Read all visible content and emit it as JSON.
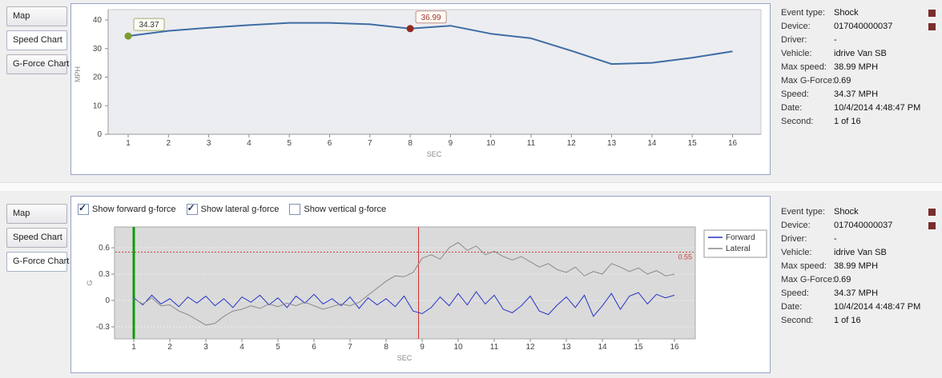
{
  "tabs": [
    "Map",
    "Speed Chart",
    "G-Force Chart"
  ],
  "panels": [
    {
      "selected_tab": "Speed Chart"
    },
    {
      "selected_tab": "G-Force Chart"
    }
  ],
  "event_info": {
    "rows": [
      {
        "label": "Event type:",
        "value": "Shock"
      },
      {
        "label": "Device:",
        "value": "017040000037"
      },
      {
        "label": "Driver:",
        "value": "-"
      },
      {
        "label": "Vehicle:",
        "value": "idrive Van SB"
      },
      {
        "label": "Max speed:",
        "value": "38.99 MPH"
      },
      {
        "label": "Max G-Force:",
        "value": "0.69"
      },
      {
        "label": "Speed:",
        "value": "34.37 MPH"
      },
      {
        "label": "Date:",
        "value": "10/4/2014 4:48:47 PM"
      },
      {
        "label": "Second:",
        "value": "1 of 16"
      }
    ],
    "marker_color": "#7a2d2d"
  },
  "gforce_controls": [
    {
      "label": "Show forward g-force",
      "checked": true
    },
    {
      "label": "Show lateral g-force",
      "checked": true
    },
    {
      "label": "Show vertical g-force",
      "checked": false
    }
  ],
  "chart_data": [
    {
      "type": "line",
      "title": "Speed Chart",
      "xlabel": "SEC",
      "ylabel": "MPH",
      "ylim": [
        0,
        40
      ],
      "yticks": [
        0,
        10,
        20,
        30,
        40
      ],
      "xticks": [
        1,
        2,
        3,
        4,
        5,
        6,
        7,
        8,
        9,
        10,
        11,
        12,
        13,
        14,
        15,
        16
      ],
      "x": [
        1,
        2,
        3,
        4,
        5,
        6,
        7,
        8,
        9,
        10,
        11,
        12,
        13,
        14,
        15,
        16
      ],
      "values": [
        34.37,
        36.2,
        37.3,
        38.2,
        39.0,
        39.0,
        38.5,
        36.99,
        38.0,
        35.2,
        33.6,
        29.2,
        24.6,
        25.0,
        26.8,
        29.0
      ],
      "line_color": "#3e6ca3",
      "plot_bg": "#ecedf1",
      "grid": false,
      "markers": [
        {
          "x": 1,
          "y": 34.37,
          "label": "34.37",
          "color": "#7d9b30",
          "box_border": "#a3ab6e",
          "text_color": "#333333"
        },
        {
          "x": 8,
          "y": 36.99,
          "label": "36.99",
          "color": "#8f2a20",
          "box_border": "#c48a82",
          "text_color": "#a03028"
        }
      ]
    },
    {
      "type": "line",
      "title": "G-Force Chart",
      "xlabel": "SEC",
      "ylabel": "G",
      "ylim": [
        -0.44,
        0.84
      ],
      "yticks": [
        -0.3,
        0,
        0.3,
        0.6
      ],
      "xticks": [
        1,
        2,
        3,
        4,
        5,
        6,
        7,
        8,
        9,
        10,
        11,
        12,
        13,
        14,
        15,
        16
      ],
      "x_start": 1,
      "x_step": 0.25,
      "plot_bg": "#dadada",
      "grid": true,
      "legend_position": "right",
      "series": [
        {
          "name": "Forward",
          "color": "#2433c8",
          "values": [
            0.03,
            -0.05,
            0.06,
            -0.04,
            0.02,
            -0.07,
            0.04,
            -0.03,
            0.05,
            -0.06,
            0.02,
            -0.08,
            0.04,
            -0.02,
            0.06,
            -0.05,
            0.03,
            -0.08,
            0.05,
            -0.03,
            0.07,
            -0.04,
            0.02,
            -0.06,
            0.04,
            -0.09,
            0.03,
            -0.05,
            0.02,
            -0.07,
            0.05,
            -0.12,
            -0.15,
            -0.08,
            0.04,
            -0.06,
            0.08,
            -0.05,
            0.1,
            -0.04,
            0.06,
            -0.1,
            -0.14,
            -0.06,
            0.05,
            -0.12,
            -0.16,
            -0.05,
            0.04,
            -0.08,
            0.06,
            -0.18,
            -0.06,
            0.08,
            -0.1,
            0.05,
            0.09,
            -0.04,
            0.07,
            0.03,
            0.06
          ]
        },
        {
          "name": "Lateral",
          "color": "#8a8a8a",
          "values": [
            0.02,
            -0.04,
            0.03,
            -0.06,
            -0.05,
            -0.12,
            -0.16,
            -0.22,
            -0.28,
            -0.26,
            -0.18,
            -0.12,
            -0.1,
            -0.06,
            -0.09,
            -0.04,
            -0.07,
            -0.03,
            -0.06,
            -0.02,
            -0.06,
            -0.1,
            -0.07,
            -0.04,
            -0.06,
            -0.02,
            0.06,
            0.14,
            0.22,
            0.28,
            0.27,
            0.32,
            0.48,
            0.52,
            0.47,
            0.6,
            0.66,
            0.57,
            0.62,
            0.52,
            0.56,
            0.5,
            0.46,
            0.5,
            0.44,
            0.38,
            0.42,
            0.35,
            0.32,
            0.38,
            0.28,
            0.33,
            0.3,
            0.42,
            0.38,
            0.33,
            0.37,
            0.3,
            0.34,
            0.28,
            0.3
          ]
        }
      ],
      "threshold": {
        "value": 0.55,
        "label": "0.55",
        "color": "#d04040"
      },
      "vlines": [
        {
          "x": 1,
          "color": "#0e9c0e",
          "width": 3
        },
        {
          "x": 8.9,
          "color": "#d03030",
          "width": 1
        }
      ]
    }
  ]
}
